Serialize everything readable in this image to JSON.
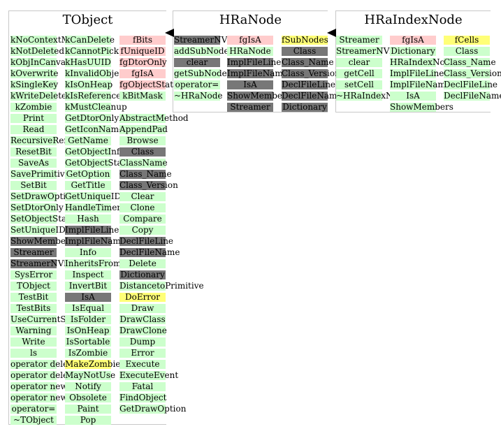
{
  "panels": [
    {
      "title": "TObject",
      "columns": [
        {
          "cells": [
            {
              "text": "kNoContextMenu",
              "style": "green"
            },
            {
              "text": "kNotDeleted",
              "style": "green"
            },
            {
              "text": "kObjInCanvas",
              "style": "green"
            },
            {
              "text": "kOverwrite",
              "style": "green"
            },
            {
              "text": "kSingleKey",
              "style": "green"
            },
            {
              "text": "kWriteDelete",
              "style": "green"
            },
            {
              "text": "kZombie",
              "style": "green"
            },
            {
              "text": "Print",
              "style": "green"
            },
            {
              "text": "Read",
              "style": "green"
            },
            {
              "text": "RecursiveRemove",
              "style": "green"
            },
            {
              "text": "ResetBit",
              "style": "green"
            },
            {
              "text": "SaveAs",
              "style": "green"
            },
            {
              "text": "SavePrimitive",
              "style": "green"
            },
            {
              "text": "SetBit",
              "style": "green"
            },
            {
              "text": "SetDrawOption",
              "style": "green"
            },
            {
              "text": "SetDtorOnly",
              "style": "green"
            },
            {
              "text": "SetObjectStat",
              "style": "green"
            },
            {
              "text": "SetUniqueID",
              "style": "green"
            },
            {
              "text": "ShowMembers",
              "style": "gray"
            },
            {
              "text": "Streamer",
              "style": "gray"
            },
            {
              "text": "StreamerNVirtual",
              "style": "gray"
            },
            {
              "text": "SysError",
              "style": "green"
            },
            {
              "text": "TObject",
              "style": "green"
            },
            {
              "text": "TestBit",
              "style": "green"
            },
            {
              "text": "TestBits",
              "style": "green"
            },
            {
              "text": "UseCurrentStyle",
              "style": "green"
            },
            {
              "text": "Warning",
              "style": "green"
            },
            {
              "text": "Write",
              "style": "green"
            },
            {
              "text": "ls",
              "style": "green"
            },
            {
              "text": "operator delete",
              "style": "green"
            },
            {
              "text": "operator delete[]",
              "style": "green"
            },
            {
              "text": "operator new",
              "style": "green"
            },
            {
              "text": "operator new[]",
              "style": "green"
            },
            {
              "text": "operator=",
              "style": "green"
            },
            {
              "text": "~TObject",
              "style": "green"
            }
          ]
        },
        {
          "cells": [
            {
              "text": "kCanDelete",
              "style": "green"
            },
            {
              "text": "kCannotPick",
              "style": "green"
            },
            {
              "text": "kHasUUID",
              "style": "green"
            },
            {
              "text": "kInvalidObject",
              "style": "green"
            },
            {
              "text": "kIsOnHeap",
              "style": "green"
            },
            {
              "text": "kIsReferenced",
              "style": "green"
            },
            {
              "text": "kMustCleanup",
              "style": "green"
            },
            {
              "text": "GetDtorOnly",
              "style": "green"
            },
            {
              "text": "GetIconName",
              "style": "green"
            },
            {
              "text": "GetName",
              "style": "green"
            },
            {
              "text": "GetObjectInfo",
              "style": "green"
            },
            {
              "text": "GetObjectStat",
              "style": "green"
            },
            {
              "text": "GetOption",
              "style": "green"
            },
            {
              "text": "GetTitle",
              "style": "green"
            },
            {
              "text": "GetUniqueID",
              "style": "green"
            },
            {
              "text": "HandleTimer",
              "style": "green"
            },
            {
              "text": "Hash",
              "style": "green"
            },
            {
              "text": "ImplFileLine",
              "style": "gray"
            },
            {
              "text": "ImplFileName",
              "style": "gray"
            },
            {
              "text": "Info",
              "style": "green"
            },
            {
              "text": "InheritsFrom",
              "style": "green"
            },
            {
              "text": "Inspect",
              "style": "green"
            },
            {
              "text": "InvertBit",
              "style": "green"
            },
            {
              "text": "IsA",
              "style": "gray"
            },
            {
              "text": "IsEqual",
              "style": "green"
            },
            {
              "text": "IsFolder",
              "style": "green"
            },
            {
              "text": "IsOnHeap",
              "style": "green"
            },
            {
              "text": "IsSortable",
              "style": "green"
            },
            {
              "text": "IsZombie",
              "style": "green"
            },
            {
              "text": "MakeZombie",
              "style": "yellow"
            },
            {
              "text": "MayNotUse",
              "style": "green"
            },
            {
              "text": "Notify",
              "style": "green"
            },
            {
              "text": "Obsolete",
              "style": "green"
            },
            {
              "text": "Paint",
              "style": "green"
            },
            {
              "text": "Pop",
              "style": "green"
            }
          ]
        },
        {
          "cells": [
            {
              "text": "fBits",
              "style": "pink"
            },
            {
              "text": "fUniqueID",
              "style": "pink"
            },
            {
              "text": "fgDtorOnly",
              "style": "pink"
            },
            {
              "text": "fgIsA",
              "style": "pink"
            },
            {
              "text": "fgObjectStat",
              "style": "pink"
            },
            {
              "text": "kBitMask",
              "style": "green"
            },
            {
              "text": "",
              "style": "white"
            },
            {
              "text": "AbstractMethod",
              "style": "green"
            },
            {
              "text": "AppendPad",
              "style": "green"
            },
            {
              "text": "Browse",
              "style": "green"
            },
            {
              "text": "Class",
              "style": "gray"
            },
            {
              "text": "ClassName",
              "style": "green"
            },
            {
              "text": "Class_Name",
              "style": "gray"
            },
            {
              "text": "Class_Version",
              "style": "gray"
            },
            {
              "text": "Clear",
              "style": "green"
            },
            {
              "text": "Clone",
              "style": "green"
            },
            {
              "text": "Compare",
              "style": "green"
            },
            {
              "text": "Copy",
              "style": "green"
            },
            {
              "text": "DeclFileLine",
              "style": "gray"
            },
            {
              "text": "DeclFileName",
              "style": "gray"
            },
            {
              "text": "Delete",
              "style": "green"
            },
            {
              "text": "Dictionary",
              "style": "gray"
            },
            {
              "text": "DistancetoPrimitive",
              "style": "green"
            },
            {
              "text": "DoError",
              "style": "yellow"
            },
            {
              "text": "Draw",
              "style": "green"
            },
            {
              "text": "DrawClass",
              "style": "green"
            },
            {
              "text": "DrawClone",
              "style": "green"
            },
            {
              "text": "Dump",
              "style": "green"
            },
            {
              "text": "Error",
              "style": "green"
            },
            {
              "text": "Execute",
              "style": "green"
            },
            {
              "text": "ExecuteEvent",
              "style": "green"
            },
            {
              "text": "Fatal",
              "style": "green"
            },
            {
              "text": "FindObject",
              "style": "green"
            },
            {
              "text": "GetDrawOption",
              "style": "green"
            }
          ]
        }
      ]
    },
    {
      "title": "HRaNode",
      "columns": [
        {
          "cells": [
            {
              "text": "StreamerNVirtual",
              "style": "gray"
            },
            {
              "text": "addSubNode",
              "style": "green"
            },
            {
              "text": "clear",
              "style": "gray"
            },
            {
              "text": "getSubNode",
              "style": "green"
            },
            {
              "text": "operator=",
              "style": "green"
            },
            {
              "text": "~HRaNode",
              "style": "green"
            }
          ]
        },
        {
          "cells": [
            {
              "text": "fgIsA",
              "style": "pink"
            },
            {
              "text": "HRaNode",
              "style": "green"
            },
            {
              "text": "ImplFileLine",
              "style": "gray"
            },
            {
              "text": "ImplFileName",
              "style": "gray"
            },
            {
              "text": "IsA",
              "style": "gray"
            },
            {
              "text": "ShowMembers",
              "style": "gray"
            },
            {
              "text": "Streamer",
              "style": "gray"
            }
          ]
        },
        {
          "cells": [
            {
              "text": "fSubNodes",
              "style": "yellow"
            },
            {
              "text": "Class",
              "style": "gray"
            },
            {
              "text": "Class_Name",
              "style": "gray"
            },
            {
              "text": "Class_Version",
              "style": "gray"
            },
            {
              "text": "DeclFileLine",
              "style": "gray"
            },
            {
              "text": "DeclFileName",
              "style": "gray"
            },
            {
              "text": "Dictionary",
              "style": "gray"
            }
          ]
        }
      ]
    },
    {
      "title": "HRaIndexNode",
      "columns": [
        {
          "cells": [
            {
              "text": "Streamer",
              "style": "green"
            },
            {
              "text": "StreamerNVirtual",
              "style": "green"
            },
            {
              "text": "clear",
              "style": "green"
            },
            {
              "text": "getCell",
              "style": "green"
            },
            {
              "text": "setCell",
              "style": "green"
            },
            {
              "text": "~HRaIndexNode",
              "style": "green"
            }
          ]
        },
        {
          "cells": [
            {
              "text": "fgIsA",
              "style": "pink"
            },
            {
              "text": "Dictionary",
              "style": "green"
            },
            {
              "text": "HRaIndexNode",
              "style": "green"
            },
            {
              "text": "ImplFileLine",
              "style": "green"
            },
            {
              "text": "ImplFileName",
              "style": "green"
            },
            {
              "text": "IsA",
              "style": "green"
            },
            {
              "text": "ShowMembers",
              "style": "green"
            }
          ]
        },
        {
          "cells": [
            {
              "text": "fCells",
              "style": "yellow"
            },
            {
              "text": "Class",
              "style": "green"
            },
            {
              "text": "Class_Name",
              "style": "green"
            },
            {
              "text": "Class_Version",
              "style": "green"
            },
            {
              "text": "DeclFileLine",
              "style": "green"
            },
            {
              "text": "DeclFileName",
              "style": "green"
            }
          ]
        }
      ]
    }
  ]
}
